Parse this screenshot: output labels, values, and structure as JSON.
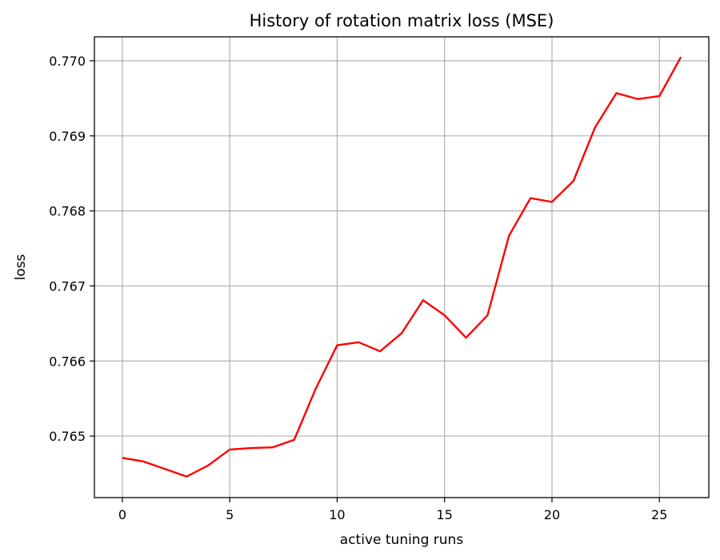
{
  "chart_data": {
    "type": "line",
    "title": "History of rotation matrix loss (MSE)",
    "xlabel": "active tuning runs",
    "ylabel": "loss",
    "xlim": [
      -1.3,
      27.3
    ],
    "ylim": [
      0.76418,
      0.77032
    ],
    "x_ticks": [
      0,
      5,
      10,
      15,
      20,
      25
    ],
    "x_tick_labels": [
      "0",
      "5",
      "10",
      "15",
      "20",
      "25"
    ],
    "y_ticks": [
      0.765,
      0.766,
      0.767,
      0.768,
      0.769,
      0.77
    ],
    "y_tick_labels": [
      "0.765",
      "0.766",
      "0.767",
      "0.768",
      "0.769",
      "0.770"
    ],
    "grid": true,
    "series": [
      {
        "color": "#ff0000",
        "x": [
          0,
          1,
          2,
          3,
          4,
          5,
          6,
          7,
          8,
          9,
          10,
          11,
          12,
          13,
          14,
          15,
          16,
          17,
          18,
          19,
          20,
          21,
          22,
          23,
          24,
          25,
          26
        ],
        "values": [
          0.76471,
          0.76466,
          0.76456,
          0.76446,
          0.76461,
          0.76482,
          0.76484,
          0.76485,
          0.76495,
          0.76563,
          0.76621,
          0.76625,
          0.76613,
          0.76637,
          0.76681,
          0.76661,
          0.76631,
          0.76661,
          0.76767,
          0.76817,
          0.76812,
          0.7684,
          0.76911,
          0.76957,
          0.76949,
          0.76953,
          0.77005
        ]
      }
    ]
  }
}
